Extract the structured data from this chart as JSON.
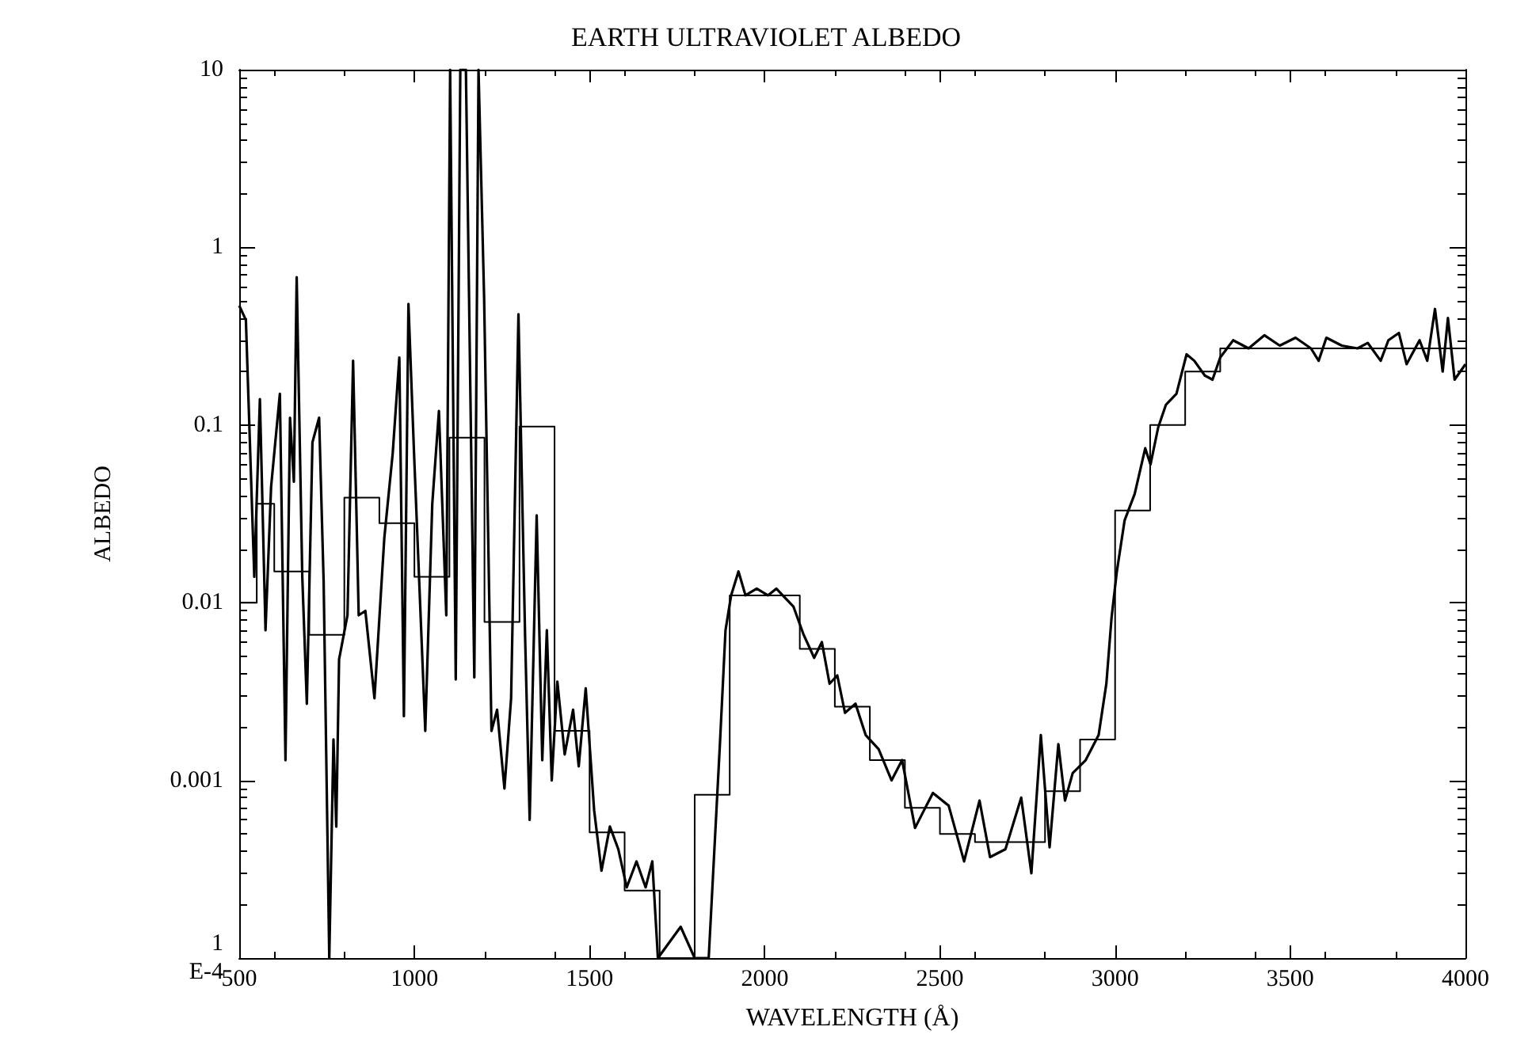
{
  "chart_data": {
    "type": "line",
    "title": "EARTH ULTRAVIOLET ALBEDO",
    "xlabel": "WAVELENGTH (Å)",
    "ylabel": "ALBEDO",
    "log": "y",
    "grid": false,
    "marker": "none",
    "line_style": "solid",
    "xlim": [
      500,
      4000
    ],
    "xticks": [
      500,
      1000,
      1500,
      2000,
      2500,
      3000,
      3500,
      4000
    ],
    "ylim": [
      0.0001,
      10
    ],
    "yticks": [
      {
        "value": 0.0001,
        "label": "1\nE-4"
      },
      0.001,
      0.01,
      0.1,
      1,
      10
    ],
    "series": [
      {
        "color": "#000000",
        "x": [
          500,
          519,
          543,
          559,
          575,
          591,
          616,
          632,
          645,
          656,
          664,
          680,
          693,
          709,
          728,
          741,
          757,
          769,
          777,
          785,
          809,
          825,
          841,
          860,
          886,
          914,
          938,
          957,
          970,
          983,
          999,
          1031,
          1051,
          1070,
          1091,
          1102,
          1118,
          1131,
          1147,
          1171,
          1183,
          1199,
          1220,
          1236,
          1257,
          1276,
          1297,
          1316,
          1329,
          1349,
          1365,
          1378,
          1392,
          1408,
          1429,
          1453,
          1469,
          1489,
          1513,
          1534,
          1558,
          1582,
          1606,
          1634,
          1660,
          1679,
          1695,
          1760,
          1800,
          1840,
          1872,
          1888,
          1904,
          1925,
          1945,
          1977,
          2009,
          2033,
          2082,
          2111,
          2141,
          2163,
          2185,
          2207,
          2229,
          2259,
          2288,
          2325,
          2362,
          2392,
          2429,
          2458,
          2480,
          2525,
          2569,
          2613,
          2643,
          2687,
          2732,
          2761,
          2788,
          2813,
          2838,
          2857,
          2879,
          2916,
          2953,
          2975,
          2990,
          3005,
          3027,
          3056,
          3086,
          3101,
          3123,
          3145,
          3175,
          3204,
          3226,
          3256,
          3278,
          3300,
          3337,
          3381,
          3426,
          3470,
          3515,
          3559,
          3581,
          3603,
          3647,
          3692,
          3721,
          3758,
          3780,
          3810,
          3832,
          3869,
          3891,
          3913,
          3935,
          3950,
          3969,
          4000
        ],
        "values": [
          0.47,
          0.39,
          0.014,
          0.14,
          0.007,
          0.045,
          0.15,
          0.0013,
          0.11,
          0.048,
          0.68,
          0.014,
          0.0027,
          0.08,
          0.11,
          0.013,
          0.0001,
          0.0017,
          0.00055,
          0.0048,
          0.0085,
          0.23,
          0.0085,
          0.009,
          0.0029,
          0.023,
          0.069,
          0.24,
          0.0023,
          0.48,
          0.069,
          0.0019,
          0.036,
          0.12,
          0.0085,
          10,
          0.0037,
          10,
          10,
          0.0038,
          10,
          0.52,
          0.0019,
          0.0025,
          0.0009,
          0.0029,
          0.42,
          0.0064,
          0.0006,
          0.031,
          0.0013,
          0.007,
          0.001,
          0.0036,
          0.0014,
          0.0025,
          0.0012,
          0.0033,
          0.00068,
          0.00031,
          0.00055,
          0.00041,
          0.00025,
          0.00035,
          0.00025,
          0.00035,
          0.0001,
          0.00015,
          0.0001,
          0.0001,
          0.0016,
          0.007,
          0.011,
          0.015,
          0.011,
          0.012,
          0.011,
          0.012,
          0.0095,
          0.0066,
          0.0049,
          0.006,
          0.0035,
          0.0039,
          0.0024,
          0.0027,
          0.0018,
          0.0015,
          0.001,
          0.0013,
          0.00054,
          0.0007,
          0.00085,
          0.00072,
          0.00035,
          0.00077,
          0.00037,
          0.00041,
          0.0008,
          0.0003,
          0.0018,
          0.00042,
          0.0016,
          0.00077,
          0.0011,
          0.0013,
          0.0018,
          0.0035,
          0.0083,
          0.015,
          0.029,
          0.041,
          0.074,
          0.06,
          0.097,
          0.13,
          0.15,
          0.25,
          0.23,
          0.19,
          0.18,
          0.24,
          0.3,
          0.27,
          0.32,
          0.28,
          0.31,
          0.27,
          0.23,
          0.31,
          0.28,
          0.27,
          0.29,
          0.23,
          0.3,
          0.33,
          0.22,
          0.3,
          0.23,
          0.45,
          0.2,
          0.4,
          0.18,
          0.22
        ]
      },
      {
        "type": "step",
        "color": "#000000",
        "x": [
          500,
          550,
          600,
          700,
          800,
          900,
          1000,
          1100,
          1200,
          1300,
          1400,
          1500,
          1600,
          1700,
          1800,
          1900,
          2100,
          2200,
          2300,
          2400,
          2500,
          2600,
          2800,
          2900,
          3000,
          3100,
          3200,
          3300,
          4000
        ],
        "values": [
          0.01,
          0.036,
          0.015,
          0.0066,
          0.039,
          0.028,
          0.014,
          0.085,
          0.0078,
          0.098,
          0.0019,
          0.00051,
          0.00024,
          0.0001,
          0.00083,
          0.011,
          0.0055,
          0.0026,
          0.0013,
          0.0007,
          0.0005,
          0.00045,
          0.00087,
          0.0017,
          0.033,
          0.1,
          0.2,
          0.27,
          0.27
        ]
      }
    ]
  }
}
